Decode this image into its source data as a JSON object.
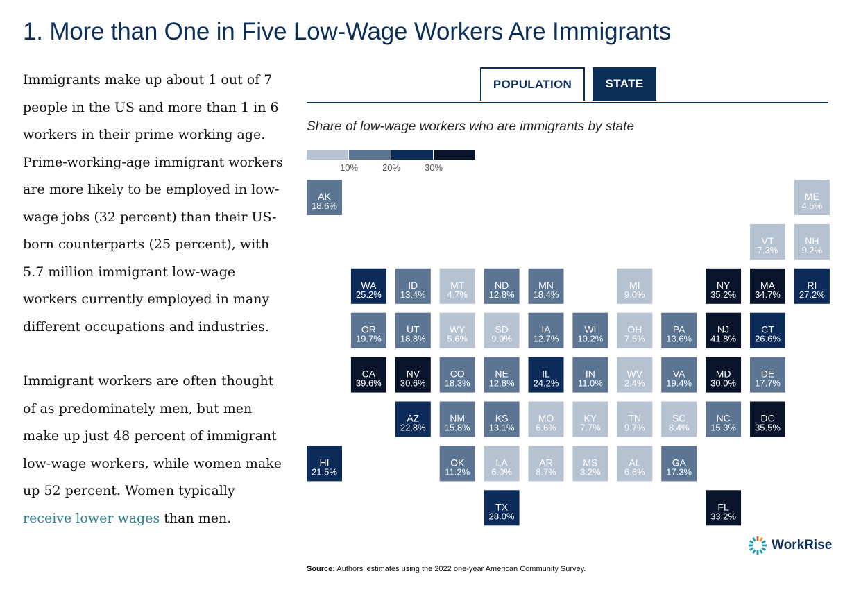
{
  "title": "1. More than One in Five Low-Wage Workers Are Immigrants",
  "body": {
    "p1": "Immigrants make up about 1 out of 7 people in the US and more than 1 in 6 workers in their prime working age. Prime-working-age immigrant workers are more likely to be employed in low-wage jobs (32 percent) than their US-born counterparts (25 percent), with 5.7 million immigrant low-wage workers currently employed in many different occupations and industries.",
    "p2_before": "Immigrant workers are often thought of as predominately men, but men make up just 48 percent of immigrant low-wage workers, while women make up 52 percent. Women typically ",
    "p2_link": "receive lower wages",
    "p2_after": " than men."
  },
  "tabs": {
    "population": "POPULATION",
    "state": "STATE"
  },
  "source_label": "Source:",
  "source_text": " Authors' estimates using the 2022 one-year American Community Survey.",
  "logo_text": "WorkRise",
  "colors": {
    "bin1": "#b5c2d1",
    "bin2": "#5b7593",
    "bin3": "#0c2b59",
    "bin4": "#08142a",
    "accent": "#0b2e59",
    "link": "#2e7f8f"
  },
  "chart_data": {
    "type": "tile-grid-map",
    "title": "Share of low-wage workers who are immigrants by state",
    "unit": "%",
    "legend": {
      "thresholds": [
        10,
        20,
        30
      ],
      "labels": [
        "10%",
        "20%",
        "30%"
      ]
    },
    "states": [
      {
        "abbr": "AK",
        "value": 18.6,
        "label": "18.6%",
        "row": 0,
        "col": 0
      },
      {
        "abbr": "ME",
        "value": 4.5,
        "label": "4.5%",
        "row": 0,
        "col": 11
      },
      {
        "abbr": "VT",
        "value": 7.3,
        "label": "7.3%",
        "row": 1,
        "col": 10
      },
      {
        "abbr": "NH",
        "value": 9.2,
        "label": "9.2%",
        "row": 1,
        "col": 11
      },
      {
        "abbr": "WA",
        "value": 25.2,
        "label": "25.2%",
        "row": 2,
        "col": 1
      },
      {
        "abbr": "ID",
        "value": 13.4,
        "label": "13.4%",
        "row": 2,
        "col": 2
      },
      {
        "abbr": "MT",
        "value": 4.7,
        "label": "4.7%",
        "row": 2,
        "col": 3
      },
      {
        "abbr": "ND",
        "value": 12.8,
        "label": "12.8%",
        "row": 2,
        "col": 4
      },
      {
        "abbr": "MN",
        "value": 18.4,
        "label": "18.4%",
        "row": 2,
        "col": 5
      },
      {
        "abbr": "MI",
        "value": 9.0,
        "label": "9.0%",
        "row": 2,
        "col": 7
      },
      {
        "abbr": "NY",
        "value": 35.2,
        "label": "35.2%",
        "row": 2,
        "col": 9
      },
      {
        "abbr": "MA",
        "value": 34.7,
        "label": "34.7%",
        "row": 2,
        "col": 10
      },
      {
        "abbr": "RI",
        "value": 27.2,
        "label": "27.2%",
        "row": 2,
        "col": 11
      },
      {
        "abbr": "OR",
        "value": 19.7,
        "label": "19.7%",
        "row": 3,
        "col": 1
      },
      {
        "abbr": "UT",
        "value": 18.8,
        "label": "18.8%",
        "row": 3,
        "col": 2
      },
      {
        "abbr": "WY",
        "value": 5.6,
        "label": "5.6%",
        "row": 3,
        "col": 3
      },
      {
        "abbr": "SD",
        "value": 9.9,
        "label": "9.9%",
        "row": 3,
        "col": 4
      },
      {
        "abbr": "IA",
        "value": 12.7,
        "label": "12.7%",
        "row": 3,
        "col": 5
      },
      {
        "abbr": "WI",
        "value": 10.2,
        "label": "10.2%",
        "row": 3,
        "col": 6
      },
      {
        "abbr": "OH",
        "value": 7.5,
        "label": "7.5%",
        "row": 3,
        "col": 7
      },
      {
        "abbr": "PA",
        "value": 13.6,
        "label": "13.6%",
        "row": 3,
        "col": 8
      },
      {
        "abbr": "NJ",
        "value": 41.8,
        "label": "41.8%",
        "row": 3,
        "col": 9
      },
      {
        "abbr": "CT",
        "value": 26.6,
        "label": "26.6%",
        "row": 3,
        "col": 10
      },
      {
        "abbr": "CA",
        "value": 39.6,
        "label": "39.6%",
        "row": 4,
        "col": 1
      },
      {
        "abbr": "NV",
        "value": 30.6,
        "label": "30.6%",
        "row": 4,
        "col": 2
      },
      {
        "abbr": "CO",
        "value": 18.3,
        "label": "18.3%",
        "row": 4,
        "col": 3
      },
      {
        "abbr": "NE",
        "value": 12.8,
        "label": "12.8%",
        "row": 4,
        "col": 4
      },
      {
        "abbr": "IL",
        "value": 24.2,
        "label": "24.2%",
        "row": 4,
        "col": 5
      },
      {
        "abbr": "IN",
        "value": 11.0,
        "label": "11.0%",
        "row": 4,
        "col": 6
      },
      {
        "abbr": "WV",
        "value": 2.4,
        "label": "2.4%",
        "row": 4,
        "col": 7
      },
      {
        "abbr": "VA",
        "value": 19.4,
        "label": "19.4%",
        "row": 4,
        "col": 8
      },
      {
        "abbr": "MD",
        "value": 30.0,
        "label": "30.0%",
        "row": 4,
        "col": 9
      },
      {
        "abbr": "DE",
        "value": 17.7,
        "label": "17.7%",
        "row": 4,
        "col": 10
      },
      {
        "abbr": "AZ",
        "value": 22.8,
        "label": "22.8%",
        "row": 5,
        "col": 2
      },
      {
        "abbr": "NM",
        "value": 15.8,
        "label": "15.8%",
        "row": 5,
        "col": 3
      },
      {
        "abbr": "KS",
        "value": 13.1,
        "label": "13.1%",
        "row": 5,
        "col": 4
      },
      {
        "abbr": "MO",
        "value": 6.6,
        "label": "6.6%",
        "row": 5,
        "col": 5
      },
      {
        "abbr": "KY",
        "value": 7.7,
        "label": "7.7%",
        "row": 5,
        "col": 6
      },
      {
        "abbr": "TN",
        "value": 9.7,
        "label": "9.7%",
        "row": 5,
        "col": 7
      },
      {
        "abbr": "SC",
        "value": 8.4,
        "label": "8.4%",
        "row": 5,
        "col": 8
      },
      {
        "abbr": "NC",
        "value": 15.3,
        "label": "15.3%",
        "row": 5,
        "col": 9
      },
      {
        "abbr": "DC",
        "value": 35.5,
        "label": "35.5%",
        "row": 5,
        "col": 10
      },
      {
        "abbr": "HI",
        "value": 21.5,
        "label": "21.5%",
        "row": 6,
        "col": 0
      },
      {
        "abbr": "OK",
        "value": 11.2,
        "label": "11.2%",
        "row": 6,
        "col": 3
      },
      {
        "abbr": "LA",
        "value": 6.0,
        "label": "6.0%",
        "row": 6,
        "col": 4
      },
      {
        "abbr": "AR",
        "value": 8.7,
        "label": "8.7%",
        "row": 6,
        "col": 5
      },
      {
        "abbr": "MS",
        "value": 3.2,
        "label": "3.2%",
        "row": 6,
        "col": 6
      },
      {
        "abbr": "AL",
        "value": 6.6,
        "label": "6.6%",
        "row": 6,
        "col": 7
      },
      {
        "abbr": "GA",
        "value": 17.3,
        "label": "17.3%",
        "row": 6,
        "col": 8
      },
      {
        "abbr": "TX",
        "value": 28.0,
        "label": "28.0%",
        "row": 7,
        "col": 4
      },
      {
        "abbr": "FL",
        "value": 33.2,
        "label": "33.2%",
        "row": 7,
        "col": 9
      }
    ]
  }
}
